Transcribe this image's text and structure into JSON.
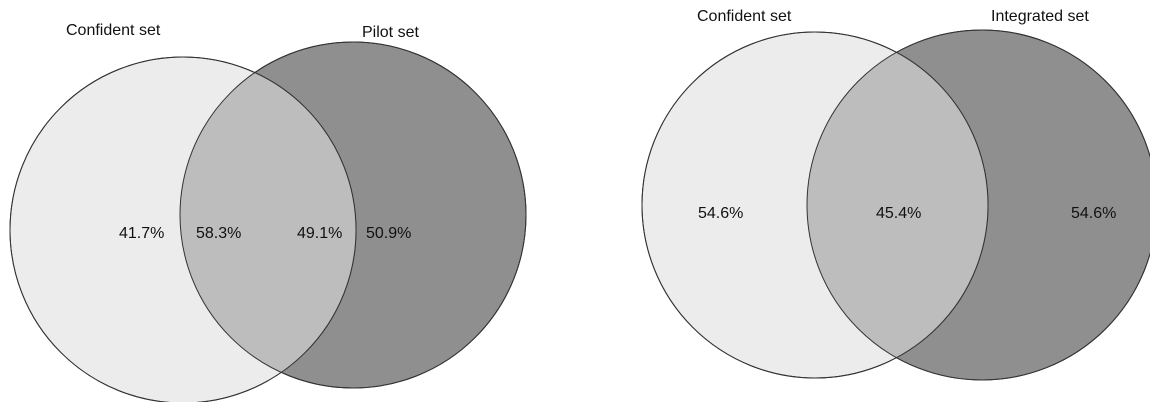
{
  "venn_left": {
    "set_a_label": "Confident set",
    "set_b_label": "Pilot set",
    "a_only": "41.7%",
    "overlap_a": "58.3%",
    "overlap_b": "49.1%",
    "b_only": "50.9%",
    "colors": {
      "a": "#ececec",
      "b": "#8f8f8f",
      "overlap": "#bdbdbd"
    }
  },
  "venn_right": {
    "set_a_label": "Confident set",
    "set_b_label": "Integrated set",
    "a_only": "54.6%",
    "overlap": "45.4%",
    "b_only": "54.6%",
    "colors": {
      "a": "#ececec",
      "b": "#8f8f8f",
      "overlap": "#bdbdbd"
    }
  }
}
